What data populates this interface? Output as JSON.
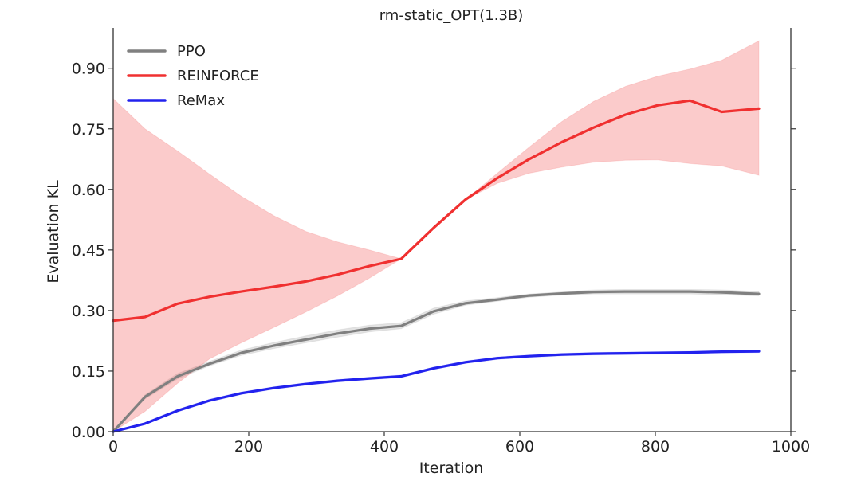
{
  "chart_data": {
    "type": "line",
    "title": "rm-static_OPT(1.3B)",
    "xlabel": "Iteration",
    "ylabel": "Evaluation KL",
    "xlim": [
      0,
      1000
    ],
    "ylim": [
      0,
      1.0
    ],
    "xticks": [
      0,
      200,
      400,
      600,
      800,
      1000
    ],
    "xtick_labels": [
      "0",
      "200",
      "400",
      "600",
      "800",
      "1000"
    ],
    "yticks": [
      0.0,
      0.15,
      0.3,
      0.45,
      0.6,
      0.75,
      0.9
    ],
    "ytick_labels": [
      "0.00",
      "0.15",
      "0.30",
      "0.45",
      "0.60",
      "0.75",
      "0.90"
    ],
    "legend_position": "top-left",
    "series": [
      {
        "name": "PPO",
        "color": "#808080",
        "x": [
          0,
          47,
          95,
          142,
          189,
          237,
          284,
          331,
          378,
          425,
          473,
          520,
          567,
          614,
          662,
          709,
          756,
          803,
          851,
          898,
          953
        ],
        "y": [
          0.0,
          0.086,
          0.137,
          0.168,
          0.195,
          0.213,
          0.228,
          0.243,
          0.255,
          0.262,
          0.298,
          0.318,
          0.327,
          0.337,
          0.342,
          0.346,
          0.347,
          0.347,
          0.347,
          0.345,
          0.341
        ],
        "band_low": [
          0.0,
          0.081,
          0.131,
          0.163,
          0.189,
          0.206,
          0.22,
          0.234,
          0.247,
          0.255,
          0.291,
          0.313,
          0.323,
          0.333,
          0.338,
          0.341,
          0.341,
          0.341,
          0.341,
          0.339,
          0.336
        ],
        "band_high": [
          0.0,
          0.091,
          0.144,
          0.174,
          0.202,
          0.221,
          0.237,
          0.252,
          0.264,
          0.27,
          0.306,
          0.324,
          0.332,
          0.341,
          0.346,
          0.351,
          0.352,
          0.352,
          0.352,
          0.351,
          0.347
        ]
      },
      {
        "name": "REINFORCE",
        "color": "#f03030",
        "x": [
          0,
          47,
          95,
          142,
          189,
          237,
          284,
          331,
          378,
          425,
          473,
          520,
          567,
          614,
          662,
          709,
          756,
          803,
          851,
          898,
          953
        ],
        "y": [
          0.275,
          0.284,
          0.317,
          0.334,
          0.347,
          0.359,
          0.372,
          0.389,
          0.41,
          0.428,
          0.505,
          0.575,
          0.628,
          0.675,
          0.717,
          0.753,
          0.785,
          0.808,
          0.82,
          0.792,
          0.8
        ],
        "band_low": [
          0.0,
          0.05,
          0.12,
          0.18,
          0.22,
          0.258,
          0.296,
          0.336,
          0.38,
          0.428,
          0.505,
          0.575,
          0.615,
          0.64,
          0.655,
          0.667,
          0.672,
          0.673,
          0.664,
          0.658,
          0.635
        ],
        "band_high": [
          0.825,
          0.75,
          0.695,
          0.638,
          0.583,
          0.535,
          0.496,
          0.47,
          0.45,
          0.428,
          0.505,
          0.575,
          0.64,
          0.705,
          0.768,
          0.818,
          0.855,
          0.88,
          0.898,
          0.92,
          0.968
        ]
      },
      {
        "name": "ReMax",
        "color": "#2222ee",
        "x": [
          0,
          47,
          95,
          142,
          189,
          237,
          284,
          331,
          378,
          425,
          473,
          520,
          567,
          614,
          662,
          709,
          756,
          803,
          851,
          898,
          953
        ],
        "y": [
          0.0,
          0.02,
          0.052,
          0.077,
          0.095,
          0.108,
          0.118,
          0.126,
          0.132,
          0.137,
          0.157,
          0.172,
          0.182,
          0.187,
          0.191,
          0.193,
          0.194,
          0.195,
          0.196,
          0.198,
          0.199
        ],
        "band_low": [
          0.0,
          0.018,
          0.049,
          0.074,
          0.092,
          0.105,
          0.115,
          0.123,
          0.129,
          0.134,
          0.154,
          0.169,
          0.179,
          0.184,
          0.188,
          0.19,
          0.191,
          0.192,
          0.193,
          0.195,
          0.196
        ],
        "band_high": [
          0.0,
          0.022,
          0.055,
          0.08,
          0.098,
          0.111,
          0.121,
          0.129,
          0.135,
          0.14,
          0.16,
          0.175,
          0.185,
          0.19,
          0.194,
          0.196,
          0.197,
          0.198,
          0.199,
          0.201,
          0.202
        ]
      }
    ]
  }
}
